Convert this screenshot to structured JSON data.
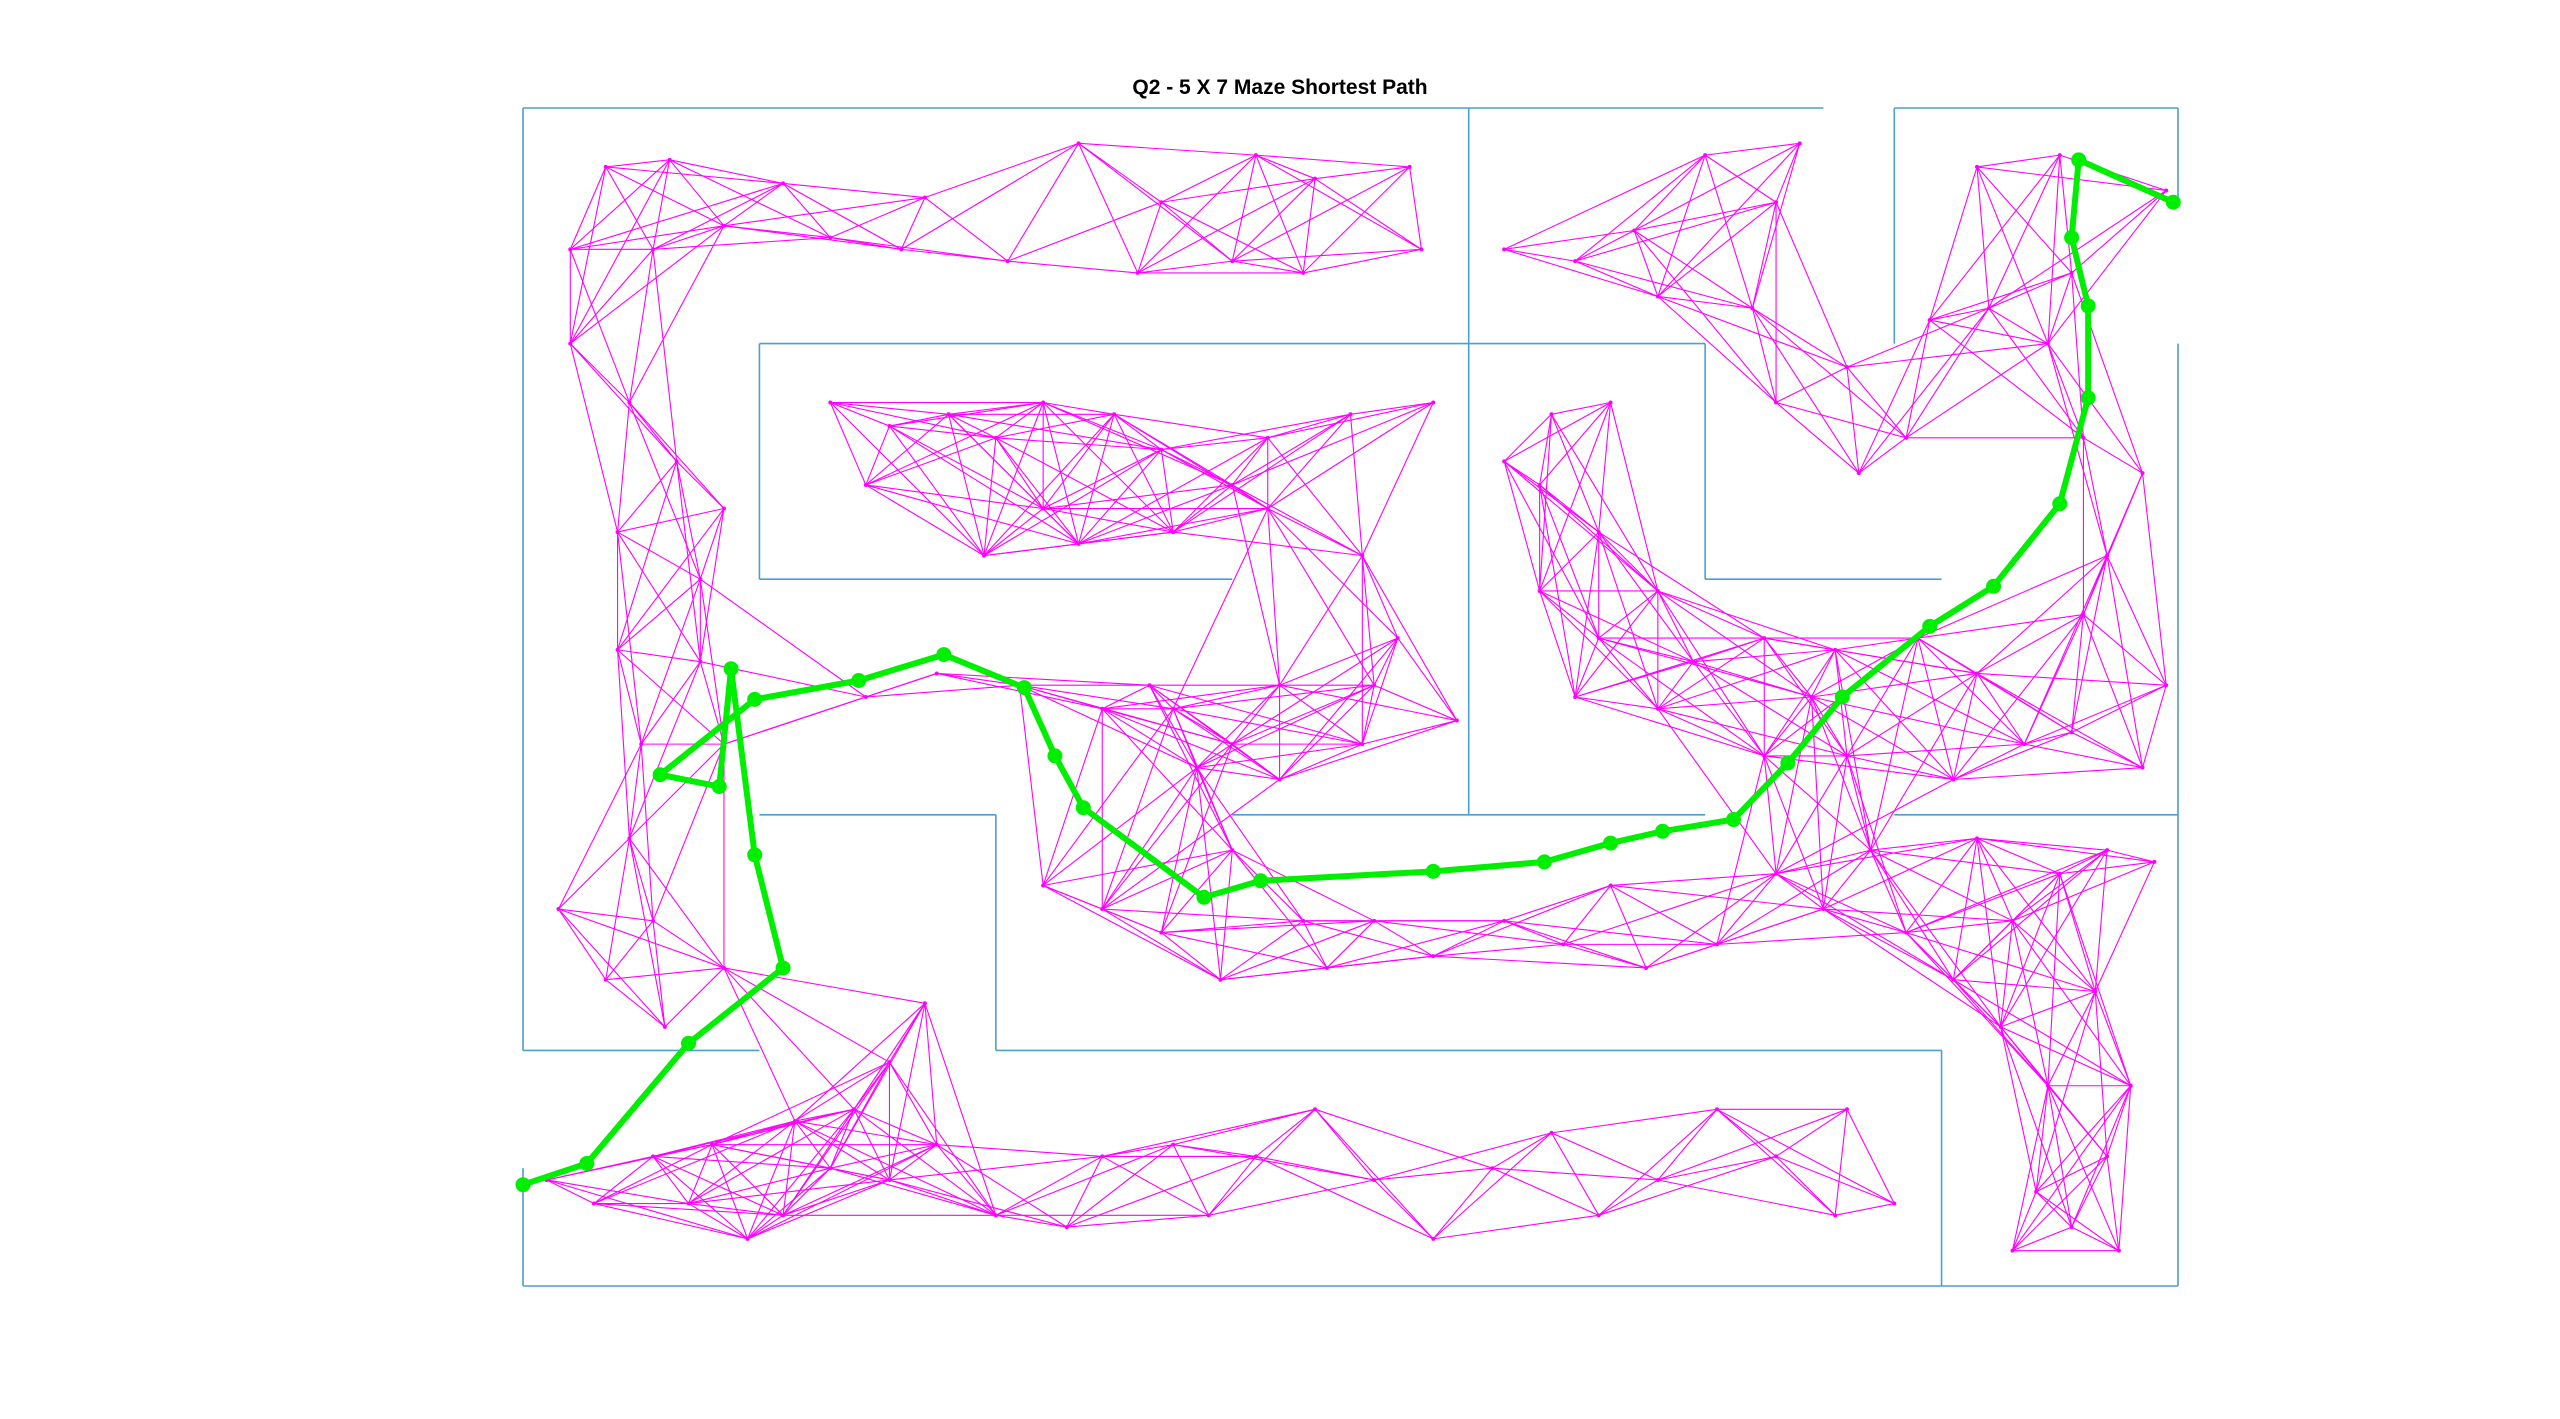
{
  "chart_data": {
    "type": "line",
    "title": "Q2 - 5 X 7 Maze Shortest Path",
    "xlabel": "",
    "ylabel": "",
    "xlim": [
      0,
      7
    ],
    "ylim": [
      0,
      5
    ],
    "grid": false,
    "axes_visible": false,
    "colors": {
      "walls": "#4a9fd4",
      "roadmap": "#ff00ff",
      "path": "#00ee00"
    },
    "walls": [
      [
        [
          0,
          5
        ],
        [
          5.5,
          5
        ]
      ],
      [
        [
          5.8,
          5
        ],
        [
          7,
          5
        ]
      ],
      [
        [
          0,
          5
        ],
        [
          0,
          1
        ]
      ],
      [
        [
          0,
          0.5
        ],
        [
          0,
          0
        ]
      ],
      [
        [
          0,
          0
        ],
        [
          7,
          0
        ]
      ],
      [
        [
          7,
          5
        ],
        [
          7,
          4.6
        ]
      ],
      [
        [
          7,
          4
        ],
        [
          7,
          0
        ]
      ],
      [
        [
          5.8,
          5
        ],
        [
          5.8,
          4
        ]
      ],
      [
        [
          4,
          5
        ],
        [
          4,
          2
        ]
      ],
      [
        [
          1,
          4
        ],
        [
          5,
          4
        ]
      ],
      [
        [
          1,
          4
        ],
        [
          1,
          3
        ]
      ],
      [
        [
          1,
          3
        ],
        [
          3,
          3
        ]
      ],
      [
        [
          5,
          4
        ],
        [
          5,
          3
        ]
      ],
      [
        [
          5,
          3
        ],
        [
          6,
          3
        ]
      ],
      [
        [
          1,
          2
        ],
        [
          2,
          2
        ]
      ],
      [
        [
          2,
          2
        ],
        [
          2,
          1
        ]
      ],
      [
        [
          2,
          1
        ],
        [
          6,
          1
        ]
      ],
      [
        [
          6,
          1
        ],
        [
          6,
          0
        ]
      ],
      [
        [
          3,
          2
        ],
        [
          5,
          2
        ]
      ],
      [
        [
          5.8,
          2
        ],
        [
          7,
          2
        ]
      ],
      [
        [
          0,
          1
        ],
        [
          1,
          1
        ]
      ]
    ],
    "roadmap_nodes": [
      [
        0.35,
        4.75
      ],
      [
        0.62,
        4.78
      ],
      [
        1.1,
        4.68
      ],
      [
        0.2,
        4.4
      ],
      [
        0.55,
        4.4
      ],
      [
        0.85,
        4.5
      ],
      [
        1.3,
        4.45
      ],
      [
        1.7,
        4.62
      ],
      [
        2.35,
        4.85
      ],
      [
        2.7,
        4.6
      ],
      [
        3.1,
        4.8
      ],
      [
        3.35,
        4.7
      ],
      [
        3.75,
        4.75
      ],
      [
        3.8,
        4.4
      ],
      [
        3.3,
        4.3
      ],
      [
        3.0,
        4.35
      ],
      [
        2.6,
        4.3
      ],
      [
        2.05,
        4.35
      ],
      [
        1.6,
        4.4
      ],
      [
        4.15,
        4.4
      ],
      [
        4.45,
        4.35
      ],
      [
        4.7,
        4.48
      ],
      [
        5.0,
        4.8
      ],
      [
        5.3,
        4.6
      ],
      [
        5.4,
        4.85
      ],
      [
        4.8,
        4.2
      ],
      [
        5.2,
        4.15
      ],
      [
        6.15,
        4.75
      ],
      [
        6.5,
        4.8
      ],
      [
        6.95,
        4.65
      ],
      [
        6.55,
        4.3
      ],
      [
        6.2,
        4.15
      ],
      [
        6.45,
        4.0
      ],
      [
        5.95,
        4.1
      ],
      [
        5.6,
        3.9
      ],
      [
        5.3,
        3.75
      ],
      [
        5.85,
        3.6
      ],
      [
        5.65,
        3.45
      ],
      [
        6.6,
        3.6
      ],
      [
        6.85,
        3.45
      ],
      [
        6.7,
        3.1
      ],
      [
        6.6,
        2.85
      ],
      [
        6.95,
        2.55
      ],
      [
        6.55,
        2.35
      ],
      [
        6.85,
        2.2
      ],
      [
        0.2,
        4.0
      ],
      [
        0.45,
        3.75
      ],
      [
        0.65,
        3.5
      ],
      [
        0.85,
        3.3
      ],
      [
        0.4,
        3.2
      ],
      [
        0.75,
        3.0
      ],
      [
        0.4,
        2.7
      ],
      [
        0.75,
        2.65
      ],
      [
        0.5,
        2.3
      ],
      [
        0.85,
        2.3
      ],
      [
        0.45,
        1.9
      ],
      [
        0.15,
        1.6
      ],
      [
        0.55,
        1.55
      ],
      [
        0.35,
        1.3
      ],
      [
        0.85,
        1.35
      ],
      [
        0.6,
        1.1
      ],
      [
        1.3,
        3.75
      ],
      [
        1.55,
        3.65
      ],
      [
        1.45,
        3.4
      ],
      [
        1.8,
        3.7
      ],
      [
        2.0,
        3.6
      ],
      [
        2.2,
        3.75
      ],
      [
        2.5,
        3.7
      ],
      [
        2.7,
        3.55
      ],
      [
        2.2,
        3.3
      ],
      [
        2.35,
        3.15
      ],
      [
        1.95,
        3.1
      ],
      [
        2.75,
        3.2
      ],
      [
        3.0,
        3.4
      ],
      [
        3.15,
        3.6
      ],
      [
        3.5,
        3.7
      ],
      [
        3.15,
        3.3
      ],
      [
        3.55,
        3.1
      ],
      [
        3.7,
        2.75
      ],
      [
        3.85,
        3.75
      ],
      [
        1.45,
        2.5
      ],
      [
        1.75,
        2.6
      ],
      [
        2.1,
        2.55
      ],
      [
        2.45,
        2.45
      ],
      [
        2.65,
        2.55
      ],
      [
        2.85,
        2.2
      ],
      [
        2.75,
        2.45
      ],
      [
        3.0,
        2.3
      ],
      [
        3.2,
        2.15
      ],
      [
        3.55,
        2.3
      ],
      [
        3.2,
        2.55
      ],
      [
        3.95,
        2.4
      ],
      [
        3.6,
        2.55
      ],
      [
        4.15,
        3.5
      ],
      [
        4.35,
        3.7
      ],
      [
        4.6,
        3.75
      ],
      [
        4.3,
        3.4
      ],
      [
        4.55,
        3.2
      ],
      [
        4.3,
        2.95
      ],
      [
        4.55,
        2.75
      ],
      [
        4.8,
        2.95
      ],
      [
        4.8,
        2.45
      ],
      [
        4.45,
        2.5
      ],
      [
        4.95,
        2.65
      ],
      [
        5.25,
        2.75
      ],
      [
        5.45,
        2.5
      ],
      [
        5.25,
        2.25
      ],
      [
        5.6,
        2.25
      ],
      [
        5.55,
        2.7
      ],
      [
        5.9,
        2.75
      ],
      [
        6.15,
        2.6
      ],
      [
        6.35,
        2.3
      ],
      [
        6.05,
        2.15
      ],
      [
        6.15,
        1.9
      ],
      [
        2.2,
        1.7
      ],
      [
        2.45,
        1.6
      ],
      [
        2.7,
        1.5
      ],
      [
        3.0,
        1.85
      ],
      [
        3.3,
        1.55
      ],
      [
        3.6,
        1.55
      ],
      [
        2.95,
        1.3
      ],
      [
        3.4,
        1.35
      ],
      [
        3.85,
        1.4
      ],
      [
        4.15,
        1.55
      ],
      [
        4.4,
        1.45
      ],
      [
        4.6,
        1.7
      ],
      [
        4.75,
        1.35
      ],
      [
        5.05,
        1.45
      ],
      [
        5.3,
        1.75
      ],
      [
        5.5,
        1.6
      ],
      [
        5.7,
        1.85
      ],
      [
        5.85,
        1.5
      ],
      [
        6.05,
        1.3
      ],
      [
        6.3,
        1.55
      ],
      [
        6.5,
        1.75
      ],
      [
        6.7,
        1.85
      ],
      [
        6.9,
        1.8
      ],
      [
        6.25,
        1.1
      ],
      [
        6.45,
        0.85
      ],
      [
        6.65,
        1.25
      ],
      [
        6.8,
        0.85
      ],
      [
        6.7,
        0.55
      ],
      [
        6.4,
        0.4
      ],
      [
        6.55,
        0.25
      ],
      [
        6.75,
        0.15
      ],
      [
        6.3,
        0.15
      ],
      [
        0.1,
        0.45
      ],
      [
        0.3,
        0.35
      ],
      [
        0.55,
        0.55
      ],
      [
        0.7,
        0.35
      ],
      [
        0.8,
        0.6
      ],
      [
        0.95,
        0.2
      ],
      [
        1.1,
        0.3
      ],
      [
        1.15,
        0.7
      ],
      [
        1.3,
        0.5
      ],
      [
        1.55,
        0.45
      ],
      [
        1.75,
        0.6
      ],
      [
        1.55,
        0.95
      ],
      [
        1.4,
        0.75
      ],
      [
        1.7,
        1.2
      ],
      [
        2.0,
        0.3
      ],
      [
        2.3,
        0.25
      ],
      [
        2.45,
        0.55
      ],
      [
        2.75,
        0.6
      ],
      [
        2.9,
        0.3
      ],
      [
        3.1,
        0.55
      ],
      [
        3.35,
        0.75
      ],
      [
        3.6,
        0.45
      ],
      [
        3.85,
        0.2
      ],
      [
        4.1,
        0.5
      ],
      [
        4.35,
        0.65
      ],
      [
        4.55,
        0.3
      ],
      [
        4.8,
        0.45
      ],
      [
        5.05,
        0.75
      ],
      [
        5.3,
        0.55
      ],
      [
        5.55,
        0.3
      ],
      [
        5.8,
        0.35
      ],
      [
        5.6,
        0.75
      ]
    ],
    "path": {
      "name": "shortest path",
      "x": [
        6.98,
        6.58,
        6.55,
        6.62,
        6.62,
        6.5,
        6.22,
        5.95,
        5.58,
        5.35,
        5.12,
        4.82,
        4.6,
        4.32,
        3.85,
        3.12,
        2.88,
        2.37,
        2.25,
        2.12,
        1.78,
        1.42,
        0.98,
        0.58,
        0.83,
        0.88,
        0.98,
        1.1,
        0.7,
        0.27,
        0.0
      ],
      "y": [
        4.6,
        4.78,
        4.45,
        4.16,
        3.77,
        3.32,
        2.97,
        2.8,
        2.5,
        2.22,
        1.98,
        1.93,
        1.88,
        1.8,
        1.76,
        1.72,
        1.65,
        2.03,
        2.25,
        2.54,
        2.68,
        2.57,
        2.49,
        2.17,
        2.12,
        2.62,
        1.83,
        1.35,
        1.03,
        0.52,
        0.43
      ]
    }
  }
}
